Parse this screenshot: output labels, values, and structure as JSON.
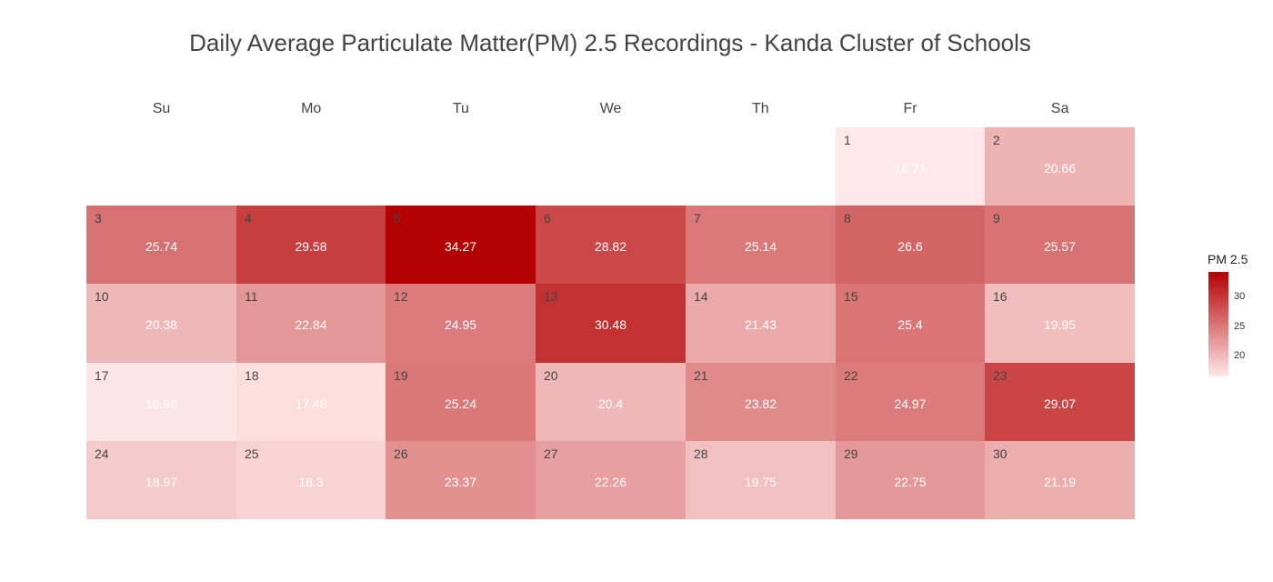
{
  "chart_data": {
    "type": "heatmap",
    "title": "Daily Average Particulate Matter(PM) 2.5 Recordings - Kanda Cluster of Schools",
    "weekdays": [
      "Su",
      "Mo",
      "Tu",
      "We",
      "Th",
      "Fr",
      "Sa"
    ],
    "first_day_column": 5,
    "days": [
      {
        "day": 1,
        "value": 16.71
      },
      {
        "day": 2,
        "value": 20.66
      },
      {
        "day": 3,
        "value": 25.74
      },
      {
        "day": 4,
        "value": 29.58
      },
      {
        "day": 5,
        "value": 34.27
      },
      {
        "day": 6,
        "value": 28.82
      },
      {
        "day": 7,
        "value": 25.14
      },
      {
        "day": 8,
        "value": 26.6
      },
      {
        "day": 9,
        "value": 25.57
      },
      {
        "day": 10,
        "value": 20.38
      },
      {
        "day": 11,
        "value": 22.84
      },
      {
        "day": 12,
        "value": 24.95
      },
      {
        "day": 13,
        "value": 30.48
      },
      {
        "day": 14,
        "value": 21.43
      },
      {
        "day": 15,
        "value": 25.4
      },
      {
        "day": 16,
        "value": 19.95
      },
      {
        "day": 17,
        "value": 16.96
      },
      {
        "day": 18,
        "value": 17.48
      },
      {
        "day": 19,
        "value": 25.24
      },
      {
        "day": 20,
        "value": 20.4
      },
      {
        "day": 21,
        "value": 23.82
      },
      {
        "day": 22,
        "value": 24.97
      },
      {
        "day": 23,
        "value": 29.07
      },
      {
        "day": 24,
        "value": 18.97
      },
      {
        "day": 25,
        "value": 18.3
      },
      {
        "day": 26,
        "value": 23.37
      },
      {
        "day": 27,
        "value": 22.26
      },
      {
        "day": 28,
        "value": 19.75
      },
      {
        "day": 29,
        "value": 22.75
      },
      {
        "day": 30,
        "value": 21.19
      }
    ],
    "color_scale": {
      "low_color": "#FFE8E8",
      "high_color": "#B30000",
      "min": 16.71,
      "max": 34.27
    },
    "legend": {
      "title": "PM 2.5",
      "ticks": [
        20,
        25,
        30
      ],
      "placement": "right"
    }
  }
}
